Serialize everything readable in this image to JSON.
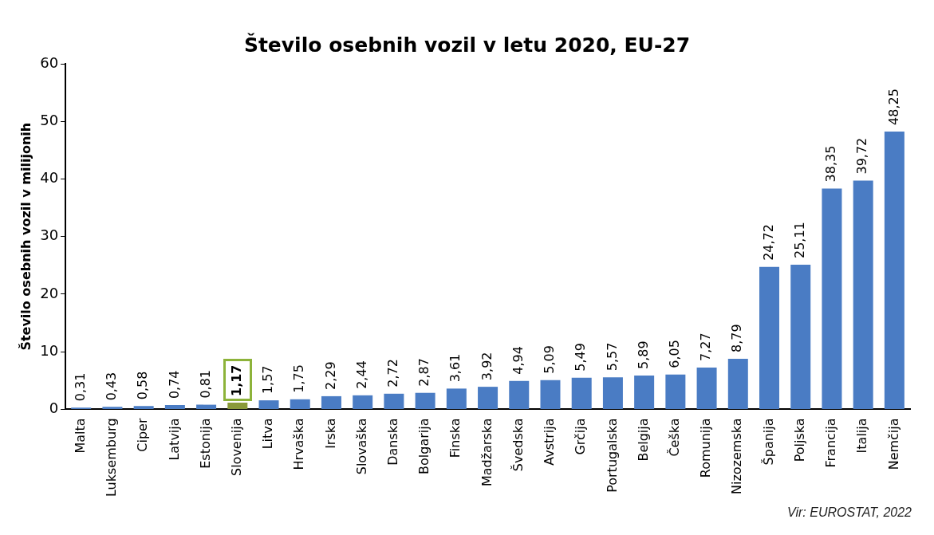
{
  "chart_data": {
    "type": "bar",
    "title": "Število osebnih vozil v letu 2020, EU-27",
    "ylabel": "Število osebnih vozil v milijonih",
    "categories": [
      "Malta",
      "Luksemburg",
      "Ciper",
      "Latvija",
      "Estonija",
      "Slovenija",
      "Litva",
      "Hrvaška",
      "Irska",
      "Slovaška",
      "Danska",
      "Bolgarija",
      "Finska",
      "Madžarska",
      "Švedska",
      "Avstrija",
      "Grčija",
      "Portugalska",
      "Belgija",
      "Češka",
      "Romunija",
      "Nizozemska",
      "Španija",
      "Poljska",
      "Francija",
      "Italija",
      "Nemčija"
    ],
    "values": [
      0.31,
      0.43,
      0.58,
      0.74,
      0.81,
      1.17,
      1.57,
      1.75,
      2.29,
      2.44,
      2.72,
      2.87,
      3.61,
      3.92,
      4.94,
      5.09,
      5.49,
      5.57,
      5.89,
      6.05,
      7.27,
      8.79,
      24.72,
      25.11,
      38.35,
      39.72,
      48.25
    ],
    "value_labels": [
      "0,31",
      "0,43",
      "0,58",
      "0,74",
      "0,81",
      "1,17",
      "1,57",
      "1,75",
      "2,29",
      "2,44",
      "2,72",
      "2,87",
      "3,61",
      "3,92",
      "4,94",
      "5,09",
      "5,49",
      "5,57",
      "5,89",
      "6,05",
      "7,27",
      "8,79",
      "24,72",
      "25,11",
      "38,35",
      "39,72",
      "48,25"
    ],
    "colors": [
      "#4a7cc4",
      "#4a7cc4",
      "#4a7cc4",
      "#4a7cc4",
      "#4a7cc4",
      "#8a9a3a",
      "#4a7cc4",
      "#4a7cc4",
      "#4a7cc4",
      "#4a7cc4",
      "#4a7cc4",
      "#4a7cc4",
      "#4a7cc4",
      "#4a7cc4",
      "#4a7cc4",
      "#4a7cc4",
      "#4a7cc4",
      "#4a7cc4",
      "#4a7cc4",
      "#4a7cc4",
      "#4a7cc4",
      "#4a7cc4",
      "#4a7cc4",
      "#4a7cc4",
      "#4a7cc4",
      "#4a7cc4",
      "#4a7cc4"
    ],
    "ylim": [
      0,
      60
    ],
    "yticks": [
      0,
      10,
      20,
      30,
      40,
      50,
      60
    ],
    "grid": false,
    "legend": false,
    "annotations": [
      "Vir: EUROSTAT, 2022"
    ]
  }
}
